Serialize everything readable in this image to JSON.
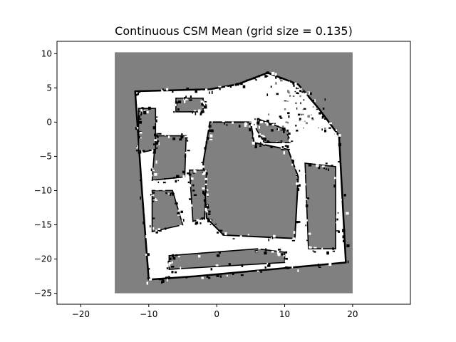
{
  "chart_data": {
    "type": "heatmap",
    "title": "Continuous CSM Mean (grid size = 0.135)",
    "xlabel": "",
    "ylabel": "",
    "xlim": [
      -23.5,
      28.5
    ],
    "ylim": [
      -26.6,
      11.8
    ],
    "x_ticks": [
      -20,
      -10,
      0,
      10,
      20
    ],
    "y_ticks": [
      10,
      5,
      0,
      -5,
      -10,
      -15,
      -20,
      -25
    ],
    "x_tick_labels": [
      "−20",
      "−10",
      "0",
      "10",
      "20"
    ],
    "y_tick_labels": [
      "10",
      "5",
      "0",
      "−5",
      "−10",
      "−15",
      "−20",
      "−25"
    ],
    "map_extent": {
      "x": [
        -15,
        20
      ],
      "y": [
        -25,
        10.2
      ]
    },
    "grid_size": 0.135,
    "colormap": {
      "unknown": "#808080",
      "free": "#ffffff",
      "occupied": "#000000"
    },
    "grid": false,
    "legend": "none"
  }
}
